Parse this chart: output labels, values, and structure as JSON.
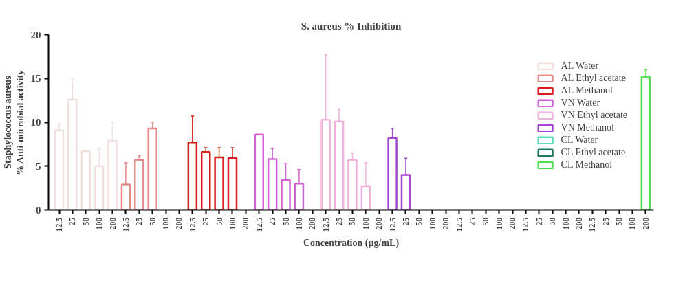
{
  "chart_data": {
    "type": "bar",
    "title": "S. aureus % Inhibition",
    "xlabel": "Concentration (µg/mL)",
    "ylabel": "Staphylococcus aureus\n% Anti-microbial activity",
    "categories": [
      "12.5",
      "25",
      "50",
      "100",
      "200",
      "12.5",
      "25",
      "50",
      "100",
      "200",
      "12.5",
      "25",
      "50",
      "100",
      "200",
      "12.5",
      "25",
      "50",
      "100",
      "200",
      "12.5",
      "25",
      "50",
      "100",
      "200",
      "12.5",
      "25",
      "50",
      "100",
      "200",
      "12.5",
      "25",
      "50",
      "100",
      "200",
      "12.5",
      "25",
      "50",
      "100",
      "200",
      "12.5",
      "25",
      "50",
      "100",
      "200"
    ],
    "ylim": [
      0,
      20
    ],
    "yticks": [
      0,
      5,
      10,
      15,
      20
    ],
    "grid": false,
    "legend": "top right",
    "series": [
      {
        "name": "AL Water",
        "color": "#f3dede",
        "values": [
          9.1,
          12.6,
          6.7,
          5.0,
          7.9,
          null,
          null,
          null,
          null,
          null,
          null,
          null,
          null,
          null,
          null,
          null,
          null,
          null,
          null,
          null,
          null,
          null,
          null,
          null,
          null,
          null,
          null,
          null,
          null,
          null,
          null,
          null,
          null,
          null,
          null,
          null,
          null,
          null,
          null,
          null,
          null,
          null,
          null,
          null,
          null
        ],
        "errors": [
          [
            9.1,
            9.8
          ],
          [
            12.6,
            14.9
          ],
          null,
          [
            5.0,
            7.0
          ],
          [
            7.9,
            10.0
          ],
          null,
          null,
          null,
          null,
          null,
          null,
          null,
          null,
          null,
          null,
          null,
          null,
          null,
          null,
          null,
          null,
          null,
          null,
          null,
          null,
          null,
          null,
          null,
          null,
          null,
          null,
          null,
          null,
          null,
          null,
          null,
          null,
          null,
          null,
          null,
          null,
          null,
          null,
          null,
          null
        ]
      },
      {
        "name": "AL Ethyl acetate",
        "color": "#e88a8a",
        "values": [
          null,
          null,
          null,
          null,
          null,
          2.9,
          5.7,
          9.3,
          null,
          null,
          null,
          null,
          null,
          null,
          null,
          null,
          null,
          null,
          null,
          null,
          null,
          null,
          null,
          null,
          null,
          null,
          null,
          null,
          null,
          null,
          null,
          null,
          null,
          null,
          null,
          null,
          null,
          null,
          null,
          null,
          null,
          null,
          null,
          null,
          null
        ],
        "errors": [
          null,
          null,
          null,
          null,
          null,
          [
            2.9,
            5.4
          ],
          [
            5.7,
            6.2
          ],
          [
            9.3,
            10.0
          ],
          null,
          null,
          null,
          null,
          null,
          null,
          null,
          null,
          null,
          null,
          null,
          null,
          null,
          null,
          null,
          null,
          null,
          null,
          null,
          null,
          null,
          null,
          null,
          null,
          null,
          null,
          null,
          null,
          null,
          null,
          null,
          null,
          null,
          null,
          null,
          null,
          null
        ]
      },
      {
        "name": "AL Methanol",
        "color": "#d91c1c",
        "values": [
          null,
          null,
          null,
          null,
          null,
          null,
          null,
          null,
          null,
          null,
          7.7,
          6.6,
          6.0,
          5.9,
          null,
          null,
          null,
          null,
          null,
          null,
          null,
          null,
          null,
          null,
          null,
          null,
          null,
          null,
          null,
          null,
          null,
          null,
          null,
          null,
          null,
          null,
          null,
          null,
          null,
          null,
          null,
          null,
          null,
          null,
          null
        ],
        "errors": [
          null,
          null,
          null,
          null,
          null,
          null,
          null,
          null,
          null,
          null,
          [
            7.7,
            10.7
          ],
          [
            6.6,
            7.1
          ],
          [
            6.0,
            7.1
          ],
          [
            5.9,
            7.1
          ],
          null,
          null,
          null,
          null,
          null,
          null,
          null,
          null,
          null,
          null,
          null,
          null,
          null,
          null,
          null,
          null,
          null,
          null,
          null,
          null,
          null,
          null,
          null,
          null,
          null,
          null,
          null,
          null,
          null,
          null,
          null
        ]
      },
      {
        "name": "VN Water",
        "color": "#d35fd6",
        "values": [
          null,
          null,
          null,
          null,
          null,
          null,
          null,
          null,
          null,
          null,
          null,
          null,
          null,
          null,
          null,
          8.6,
          5.8,
          3.4,
          3.0,
          null,
          null,
          null,
          null,
          null,
          null,
          null,
          null,
          null,
          null,
          null,
          null,
          null,
          null,
          null,
          null,
          null,
          null,
          null,
          null,
          null,
          null,
          null,
          null,
          null,
          null
        ],
        "errors": [
          null,
          null,
          null,
          null,
          null,
          null,
          null,
          null,
          null,
          null,
          null,
          null,
          null,
          null,
          null,
          null,
          [
            5.8,
            7.0
          ],
          [
            3.4,
            5.3
          ],
          [
            3.0,
            4.6
          ],
          null,
          null,
          null,
          null,
          null,
          null,
          null,
          null,
          null,
          null,
          null,
          null,
          null,
          null,
          null,
          null,
          null,
          null,
          null,
          null,
          null,
          null,
          null,
          null,
          null,
          null
        ]
      },
      {
        "name": "VN Ethyl acetate",
        "color": "#f0b2dc",
        "values": [
          null,
          null,
          null,
          null,
          null,
          null,
          null,
          null,
          null,
          null,
          null,
          null,
          null,
          null,
          null,
          null,
          null,
          null,
          null,
          null,
          10.3,
          10.1,
          5.7,
          2.7,
          null,
          null,
          null,
          null,
          null,
          null,
          null,
          null,
          null,
          null,
          null,
          null,
          null,
          null,
          null,
          null,
          null,
          null,
          null,
          null,
          null
        ],
        "errors": [
          null,
          null,
          null,
          null,
          null,
          null,
          null,
          null,
          null,
          null,
          null,
          null,
          null,
          null,
          null,
          null,
          null,
          null,
          null,
          null,
          [
            10.3,
            17.7
          ],
          [
            10.1,
            11.5
          ],
          [
            5.7,
            6.5
          ],
          [
            2.7,
            5.4
          ],
          null,
          null,
          null,
          null,
          null,
          null,
          null,
          null,
          null,
          null,
          null,
          null,
          null,
          null,
          null,
          null,
          null,
          null,
          null,
          null,
          null
        ]
      },
      {
        "name": "VN Methanol",
        "color": "#a347d1",
        "values": [
          null,
          null,
          null,
          null,
          null,
          null,
          null,
          null,
          null,
          null,
          null,
          null,
          null,
          null,
          null,
          null,
          null,
          null,
          null,
          null,
          null,
          null,
          null,
          null,
          null,
          8.2,
          4.0,
          null,
          null,
          null,
          null,
          null,
          null,
          null,
          null,
          null,
          null,
          null,
          null,
          null,
          null,
          null,
          null,
          null,
          null
        ],
        "errors": [
          null,
          null,
          null,
          null,
          null,
          null,
          null,
          null,
          null,
          null,
          null,
          null,
          null,
          null,
          null,
          null,
          null,
          null,
          null,
          null,
          null,
          null,
          null,
          null,
          null,
          [
            8.2,
            9.3
          ],
          [
            4.0,
            5.9
          ],
          null,
          null,
          null,
          null,
          null,
          null,
          null,
          null,
          null,
          null,
          null,
          null,
          null,
          null,
          null,
          null,
          null,
          null
        ]
      },
      {
        "name": "CL Water",
        "color": "#5fd9b8",
        "values": [
          null,
          null,
          null,
          null,
          null,
          null,
          null,
          null,
          null,
          null,
          null,
          null,
          null,
          null,
          null,
          null,
          null,
          null,
          null,
          null,
          null,
          null,
          null,
          null,
          null,
          null,
          null,
          null,
          null,
          null,
          null,
          null,
          null,
          null,
          null,
          null,
          null,
          null,
          null,
          null,
          null,
          null,
          null,
          null,
          null
        ]
      },
      {
        "name": "CL Ethyl acetate",
        "color": "#1a7a5a",
        "values": [
          null,
          null,
          null,
          null,
          null,
          null,
          null,
          null,
          null,
          null,
          null,
          null,
          null,
          null,
          null,
          null,
          null,
          null,
          null,
          null,
          null,
          null,
          null,
          null,
          null,
          null,
          null,
          null,
          null,
          null,
          null,
          null,
          null,
          null,
          null,
          null,
          null,
          null,
          null,
          null,
          null,
          null,
          null,
          null,
          null
        ]
      },
      {
        "name": "CL Methanol",
        "color": "#4de04d",
        "values": [
          null,
          null,
          null,
          null,
          null,
          null,
          null,
          null,
          null,
          null,
          null,
          null,
          null,
          null,
          null,
          null,
          null,
          null,
          null,
          null,
          null,
          null,
          null,
          null,
          null,
          null,
          null,
          null,
          null,
          null,
          null,
          null,
          null,
          null,
          null,
          null,
          null,
          null,
          null,
          null,
          null,
          null,
          null,
          null,
          15.2
        ],
        "errors": [
          null,
          null,
          null,
          null,
          null,
          null,
          null,
          null,
          null,
          null,
          null,
          null,
          null,
          null,
          null,
          null,
          null,
          null,
          null,
          null,
          null,
          null,
          null,
          null,
          null,
          null,
          null,
          null,
          null,
          null,
          null,
          null,
          null,
          null,
          null,
          null,
          null,
          null,
          null,
          null,
          null,
          null,
          null,
          null,
          [
            15.2,
            16.0
          ]
        ]
      }
    ]
  }
}
